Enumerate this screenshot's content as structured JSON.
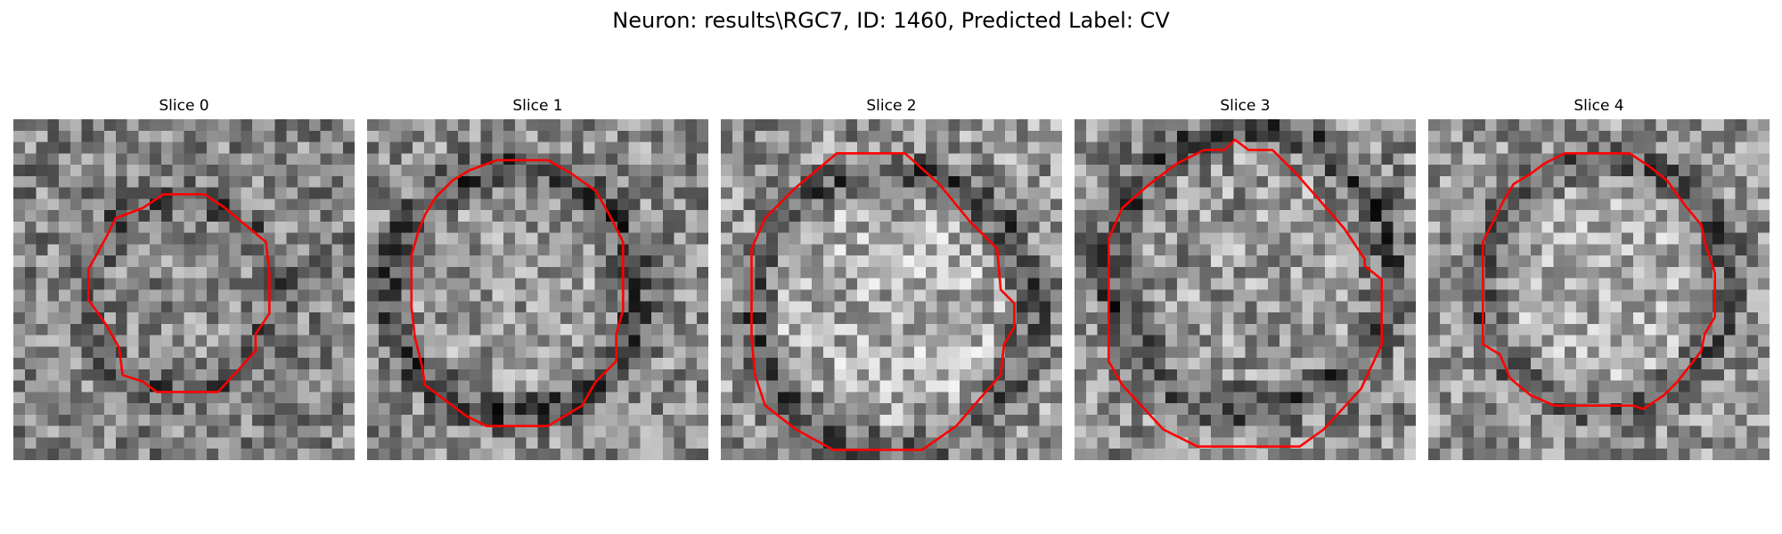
{
  "figure": {
    "title": "Neuron: results\\RGC7, ID: 1460, Predicted Label: CV",
    "contour_color": "#ff0000",
    "slices": [
      {
        "label": "Slice 0",
        "seed": 11,
        "base": 0.52,
        "contrast": 0.26,
        "ring_depth": 0.18,
        "inner_lift": 0.02,
        "contour": [
          [
            0.44,
            0.22
          ],
          [
            0.56,
            0.22
          ],
          [
            0.62,
            0.26
          ],
          [
            0.68,
            0.31
          ],
          [
            0.74,
            0.36
          ],
          [
            0.75,
            0.45
          ],
          [
            0.75,
            0.57
          ],
          [
            0.71,
            0.63
          ],
          [
            0.71,
            0.68
          ],
          [
            0.6,
            0.8
          ],
          [
            0.57,
            0.8
          ],
          [
            0.42,
            0.8
          ],
          [
            0.38,
            0.77
          ],
          [
            0.32,
            0.75
          ],
          [
            0.31,
            0.67
          ],
          [
            0.27,
            0.6
          ],
          [
            0.22,
            0.53
          ],
          [
            0.22,
            0.44
          ],
          [
            0.27,
            0.35
          ],
          [
            0.3,
            0.29
          ],
          [
            0.38,
            0.26
          ]
        ]
      },
      {
        "label": "Slice 1",
        "seed": 23,
        "base": 0.55,
        "contrast": 0.26,
        "ring_depth": 0.28,
        "inner_lift": 0.05,
        "contour": [
          [
            0.38,
            0.12
          ],
          [
            0.53,
            0.12
          ],
          [
            0.6,
            0.16
          ],
          [
            0.67,
            0.21
          ],
          [
            0.71,
            0.28
          ],
          [
            0.75,
            0.36
          ],
          [
            0.75,
            0.56
          ],
          [
            0.73,
            0.63
          ],
          [
            0.73,
            0.71
          ],
          [
            0.67,
            0.77
          ],
          [
            0.63,
            0.84
          ],
          [
            0.58,
            0.87
          ],
          [
            0.53,
            0.9
          ],
          [
            0.35,
            0.9
          ],
          [
            0.29,
            0.87
          ],
          [
            0.17,
            0.78
          ],
          [
            0.16,
            0.72
          ],
          [
            0.14,
            0.64
          ],
          [
            0.13,
            0.55
          ],
          [
            0.13,
            0.4
          ],
          [
            0.15,
            0.33
          ],
          [
            0.17,
            0.28
          ],
          [
            0.2,
            0.23
          ],
          [
            0.25,
            0.18
          ],
          [
            0.3,
            0.15
          ]
        ]
      },
      {
        "label": "Slice 2",
        "seed": 37,
        "base": 0.58,
        "contrast": 0.28,
        "ring_depth": 0.26,
        "inner_lift": 0.1,
        "contour": [
          [
            0.34,
            0.1
          ],
          [
            0.54,
            0.1
          ],
          [
            0.64,
            0.19
          ],
          [
            0.73,
            0.3
          ],
          [
            0.81,
            0.38
          ],
          [
            0.82,
            0.5
          ],
          [
            0.86,
            0.54
          ],
          [
            0.86,
            0.61
          ],
          [
            0.83,
            0.66
          ],
          [
            0.82,
            0.75
          ],
          [
            0.75,
            0.83
          ],
          [
            0.69,
            0.9
          ],
          [
            0.59,
            0.97
          ],
          [
            0.33,
            0.97
          ],
          [
            0.22,
            0.91
          ],
          [
            0.13,
            0.84
          ],
          [
            0.1,
            0.75
          ],
          [
            0.09,
            0.64
          ],
          [
            0.09,
            0.38
          ],
          [
            0.13,
            0.29
          ],
          [
            0.22,
            0.2
          ]
        ]
      },
      {
        "label": "Slice 3",
        "seed": 51,
        "base": 0.55,
        "contrast": 0.28,
        "ring_depth": 0.26,
        "inner_lift": 0.04,
        "contour": [
          [
            0.47,
            0.06
          ],
          [
            0.51,
            0.09
          ],
          [
            0.58,
            0.09
          ],
          [
            0.65,
            0.16
          ],
          [
            0.72,
            0.24
          ],
          [
            0.79,
            0.32
          ],
          [
            0.85,
            0.41
          ],
          [
            0.85,
            0.43
          ],
          [
            0.9,
            0.47
          ],
          [
            0.9,
            0.66
          ],
          [
            0.84,
            0.79
          ],
          [
            0.73,
            0.91
          ],
          [
            0.66,
            0.96
          ],
          [
            0.36,
            0.96
          ],
          [
            0.26,
            0.91
          ],
          [
            0.14,
            0.78
          ],
          [
            0.1,
            0.71
          ],
          [
            0.1,
            0.35
          ],
          [
            0.14,
            0.26
          ],
          [
            0.22,
            0.19
          ],
          [
            0.3,
            0.13
          ],
          [
            0.38,
            0.09
          ],
          [
            0.44,
            0.09
          ]
        ]
      },
      {
        "label": "Slice 4",
        "seed": 67,
        "base": 0.58,
        "contrast": 0.25,
        "ring_depth": 0.24,
        "inner_lift": 0.1,
        "contour": [
          [
            0.4,
            0.1
          ],
          [
            0.59,
            0.1
          ],
          [
            0.65,
            0.14
          ],
          [
            0.7,
            0.18
          ],
          [
            0.75,
            0.25
          ],
          [
            0.8,
            0.31
          ],
          [
            0.81,
            0.36
          ],
          [
            0.84,
            0.45
          ],
          [
            0.84,
            0.58
          ],
          [
            0.81,
            0.63
          ],
          [
            0.8,
            0.68
          ],
          [
            0.73,
            0.77
          ],
          [
            0.69,
            0.81
          ],
          [
            0.63,
            0.85
          ],
          [
            0.6,
            0.84
          ],
          [
            0.55,
            0.84
          ],
          [
            0.37,
            0.84
          ],
          [
            0.3,
            0.81
          ],
          [
            0.24,
            0.76
          ],
          [
            0.21,
            0.69
          ],
          [
            0.16,
            0.66
          ],
          [
            0.16,
            0.36
          ],
          [
            0.19,
            0.3
          ],
          [
            0.22,
            0.24
          ],
          [
            0.25,
            0.19
          ],
          [
            0.3,
            0.16
          ],
          [
            0.34,
            0.13
          ]
        ]
      }
    ]
  }
}
